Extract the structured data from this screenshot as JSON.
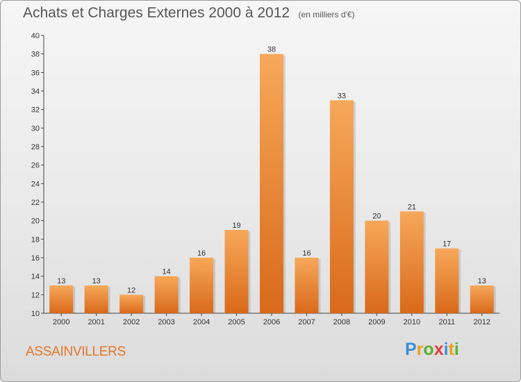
{
  "header": {
    "title": "Achats et Charges Externes 2000 à 2012",
    "subtitle": "(en milliers d'€)"
  },
  "footer": {
    "commune": "ASSAINVILLERS",
    "logo": {
      "letters": [
        "P",
        "r",
        "o",
        "x",
        "i",
        "t",
        "i"
      ],
      "colors": [
        "#3a8fd8",
        "#e8a020",
        "#5cb030",
        "#e04040",
        "#3a8fd8",
        "#e8a020",
        "#5cb030"
      ]
    }
  },
  "chart_data": {
    "type": "bar",
    "categories": [
      "2000",
      "2001",
      "2002",
      "2003",
      "2004",
      "2005",
      "2006",
      "2007",
      "2008",
      "2009",
      "2010",
      "2011",
      "2012"
    ],
    "values": [
      13,
      13,
      12,
      14,
      16,
      19,
      38,
      16,
      33,
      20,
      21,
      17,
      13
    ],
    "ylim": [
      10,
      40
    ],
    "yticks": [
      10,
      12,
      14,
      16,
      18,
      20,
      22,
      24,
      26,
      28,
      30,
      32,
      34,
      36,
      38,
      40
    ],
    "grid": false,
    "bar_color": "#f08a30"
  }
}
